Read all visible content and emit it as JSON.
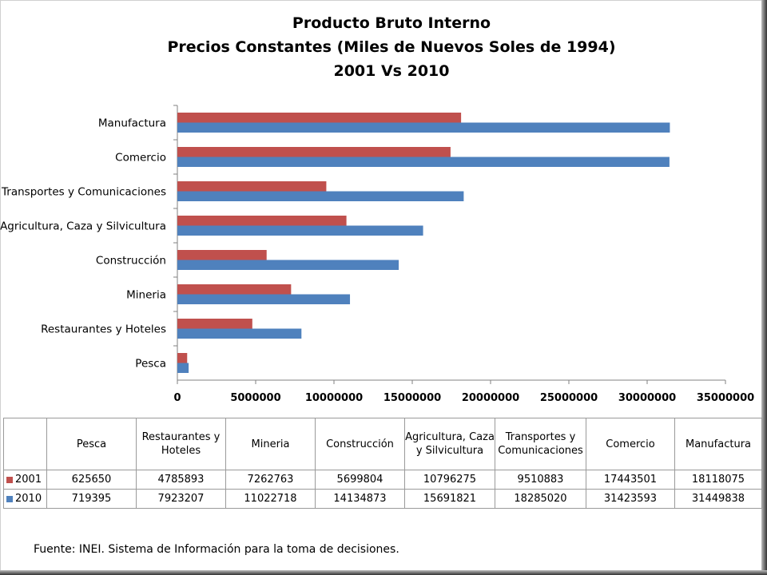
{
  "chart_data": {
    "type": "bar",
    "orientation": "horizontal",
    "title_lines": [
      "Producto Bruto Interno",
      "Precios Constantes (Miles de Nuevos Soles de 1994)",
      "2001 Vs 2010"
    ],
    "categories": [
      "Pesca",
      "Restaurantes y Hoteles",
      "Mineria",
      "Construcción",
      "Agricultura, Caza y Silvicultura",
      "Transportes y Comunicaciones",
      "Comercio",
      "Manufactura"
    ],
    "table_headers": [
      "Pesca",
      "Restaurantes y Hoteles",
      "Mineria",
      "Construcción",
      "Agricultura, Caza y Silvicultura",
      "Transportes y Comunicaciones",
      "Comercio",
      "Manufactura"
    ],
    "series": [
      {
        "name": "2001",
        "color": "#c0504d",
        "values": [
          625650,
          4785893,
          7262763,
          5699804,
          10796275,
          9510883,
          17443501,
          18118075
        ]
      },
      {
        "name": "2010",
        "color": "#4f81bd",
        "values": [
          719395,
          7923207,
          11022718,
          14134873,
          15691821,
          18285020,
          31423593,
          31449838
        ]
      }
    ],
    "xlim": [
      0,
      35000000
    ],
    "xticks": [
      0,
      5000000,
      10000000,
      15000000,
      20000000,
      25000000,
      30000000,
      35000000
    ],
    "grid": false,
    "legend": "in data table"
  },
  "source": "Fuente: INEI.  Sistema de Información para la toma de decisiones."
}
